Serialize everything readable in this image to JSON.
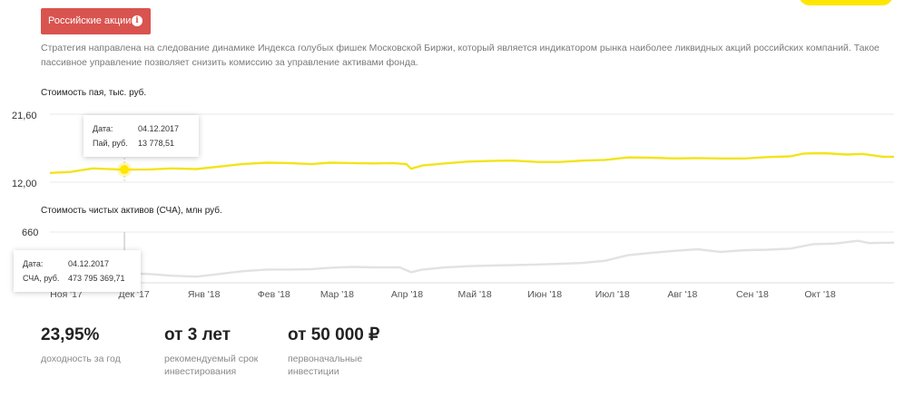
{
  "badge": {
    "label": "Российские акции",
    "info_icon": "info-icon"
  },
  "description": "Стратегия направлена на следование динамике Индекса голубых фишек Московской Биржи, который является индикатором рынка наиболее ликвидных акций российских компаний. Такое пассивное управление позволяет снизить комиссию за управление активами фонда.",
  "colors": {
    "badge": "#d9534f",
    "unit_line": "#f2e41a",
    "nav_line": "#e2e2e2",
    "accent": "#ffe600"
  },
  "chart_data": [
    {
      "type": "line",
      "title": "Стоимость пая, тыс. руб.",
      "y_tick_labels": [
        "21,60",
        "12,00"
      ],
      "ylim": [
        12.0,
        21.6
      ],
      "x_tick_labels": [
        "Ноя '17",
        "Дек '17",
        "Янв '18",
        "Фев '18",
        "Мар '18",
        "Апр '18",
        "Май '18",
        "Июн '18",
        "Июл '18",
        "Авг '18",
        "Сен '18",
        "Окт '18"
      ],
      "series": [
        {
          "x": [
            "2017-11-01",
            "2017-11-10",
            "2017-11-20",
            "2017-12-01",
            "2017-12-04",
            "2017-12-15",
            "2017-12-25",
            "2018-01-05",
            "2018-01-15",
            "2018-01-25",
            "2018-02-05",
            "2018-02-15",
            "2018-02-25",
            "2018-03-05",
            "2018-03-15",
            "2018-03-25",
            "2018-04-02",
            "2018-04-08",
            "2018-04-10",
            "2018-04-15",
            "2018-04-25",
            "2018-05-05",
            "2018-05-15",
            "2018-05-25",
            "2018-06-05",
            "2018-06-15",
            "2018-06-25",
            "2018-07-05",
            "2018-07-15",
            "2018-07-25",
            "2018-08-05",
            "2018-08-15",
            "2018-08-25",
            "2018-09-05",
            "2018-09-15",
            "2018-09-25",
            "2018-10-01",
            "2018-10-10",
            "2018-10-20",
            "2018-10-27",
            "2018-11-05",
            "2018-11-10"
          ],
          "values": [
            13.3,
            13.45,
            13.95,
            13.8,
            13.78,
            13.8,
            13.95,
            13.85,
            14.2,
            14.55,
            14.75,
            14.7,
            14.55,
            14.75,
            14.7,
            14.65,
            14.7,
            14.55,
            13.9,
            14.35,
            14.65,
            14.9,
            15.0,
            15.05,
            14.85,
            14.85,
            15.05,
            15.15,
            15.5,
            15.45,
            15.35,
            15.4,
            15.35,
            15.35,
            15.55,
            15.65,
            16.05,
            16.1,
            15.9,
            16.0,
            15.6,
            15.6
          ]
        }
      ],
      "tooltip": {
        "date_label": "Дата:",
        "date": "04.12.2017",
        "value_label": "Пай, руб.",
        "value": "13 778,51"
      }
    },
    {
      "type": "line",
      "title": "Стоимость чистых активов (СЧА), млн руб.",
      "y_tick_labels": [
        "660"
      ],
      "ylim": [
        430,
        660
      ],
      "x_tick_labels": [
        "Ноя '17",
        "Дек '17",
        "Янв '18",
        "Фев '18",
        "Мар '18",
        "Апр '18",
        "Май '18",
        "Июн '18",
        "Июл '18",
        "Авг '18",
        "Сен '18",
        "Окт '18"
      ],
      "series": [
        {
          "x": [
            "2017-11-01",
            "2017-11-20",
            "2017-12-04",
            "2017-12-15",
            "2017-12-25",
            "2018-01-05",
            "2018-01-15",
            "2018-01-25",
            "2018-02-05",
            "2018-02-15",
            "2018-02-25",
            "2018-03-05",
            "2018-03-15",
            "2018-03-25",
            "2018-04-05",
            "2018-04-10",
            "2018-04-15",
            "2018-04-25",
            "2018-05-05",
            "2018-05-15",
            "2018-05-25",
            "2018-06-05",
            "2018-06-15",
            "2018-06-25",
            "2018-07-05",
            "2018-07-15",
            "2018-07-25",
            "2018-08-05",
            "2018-08-15",
            "2018-08-25",
            "2018-09-05",
            "2018-09-15",
            "2018-09-25",
            "2018-10-05",
            "2018-10-15",
            "2018-10-25",
            "2018-10-30",
            "2018-11-10"
          ],
          "values": [
            468,
            472,
            474,
            470,
            462,
            458,
            470,
            482,
            490,
            490,
            492,
            498,
            502,
            500,
            500,
            478,
            490,
            500,
            505,
            508,
            510,
            513,
            516,
            520,
            530,
            555,
            565,
            575,
            582,
            570,
            578,
            580,
            585,
            605,
            608,
            620,
            610,
            612
          ]
        }
      ],
      "tooltip": {
        "date_label": "Дата:",
        "date": "04.12.2017",
        "value_label": "СЧА, руб.",
        "value": "473 795 369,71"
      }
    }
  ],
  "stats": [
    {
      "value": "23,95%",
      "caption_lines": [
        "доходность за год"
      ]
    },
    {
      "value": "от 3 лет",
      "caption_lines": [
        "рекомендуемый срок",
        "инвестирования"
      ]
    },
    {
      "value": "от 50 000 ₽",
      "caption_lines": [
        "первоначальные",
        "инвестиции"
      ]
    }
  ]
}
